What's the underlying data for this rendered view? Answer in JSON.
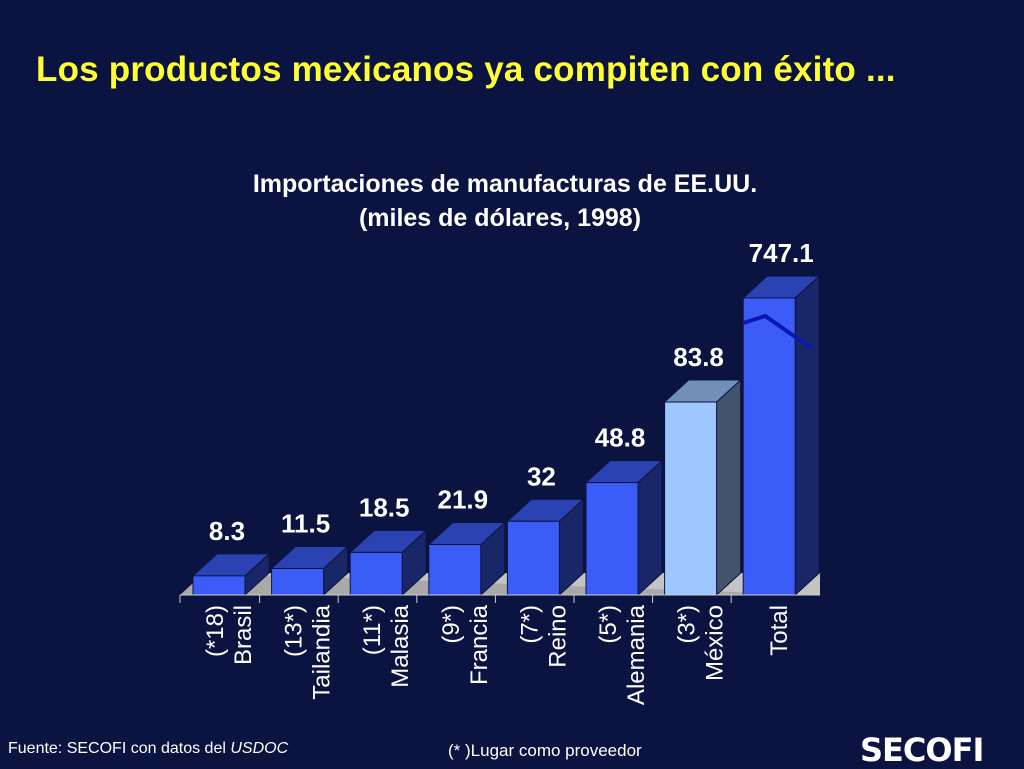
{
  "slide": {
    "title": "Los productos mexicanos ya compiten con éxito ...",
    "source_prefix": "Fuente: SECOFI con datos del ",
    "source_em": "USDOC",
    "note": "(* )Lugar como proveedor",
    "logo_text": "SECOFI"
  },
  "colors": {
    "background": "#0b1340",
    "title": "#ffff33",
    "bar": "#3c5cf7",
    "bar_highlight": "#9ec6ff",
    "text": "#ffffff"
  },
  "chart_data": {
    "type": "bar",
    "title_lines": [
      "Importaciones de manufacturas de EE.UU.",
      "(miles de dólares, 1998)"
    ],
    "categories": [
      {
        "rank": "(*18)",
        "name": "Brasil"
      },
      {
        "rank": "(13*)",
        "name": "Tailandia"
      },
      {
        "rank": "(11*)",
        "name": "Malasia"
      },
      {
        "rank": "(9*)",
        "name": "Francia"
      },
      {
        "rank": "(7*)",
        "name": "Reino"
      },
      {
        "rank": "(5*)",
        "name": "Alemania"
      },
      {
        "rank": "(3*)",
        "name": "México"
      },
      {
        "rank": "",
        "name": "Total"
      }
    ],
    "values": [
      8.3,
      11.5,
      18.5,
      21.9,
      32,
      48.8,
      83.8,
      747.1
    ],
    "value_labels": [
      "8.3",
      "11.5",
      "18.5",
      "21.9",
      "32",
      "48.8",
      "83.8",
      "747.1"
    ],
    "highlight_index": 6,
    "axis_break_on": "Total",
    "ylim": [
      0,
      100
    ],
    "grid": false,
    "legend": "none"
  }
}
